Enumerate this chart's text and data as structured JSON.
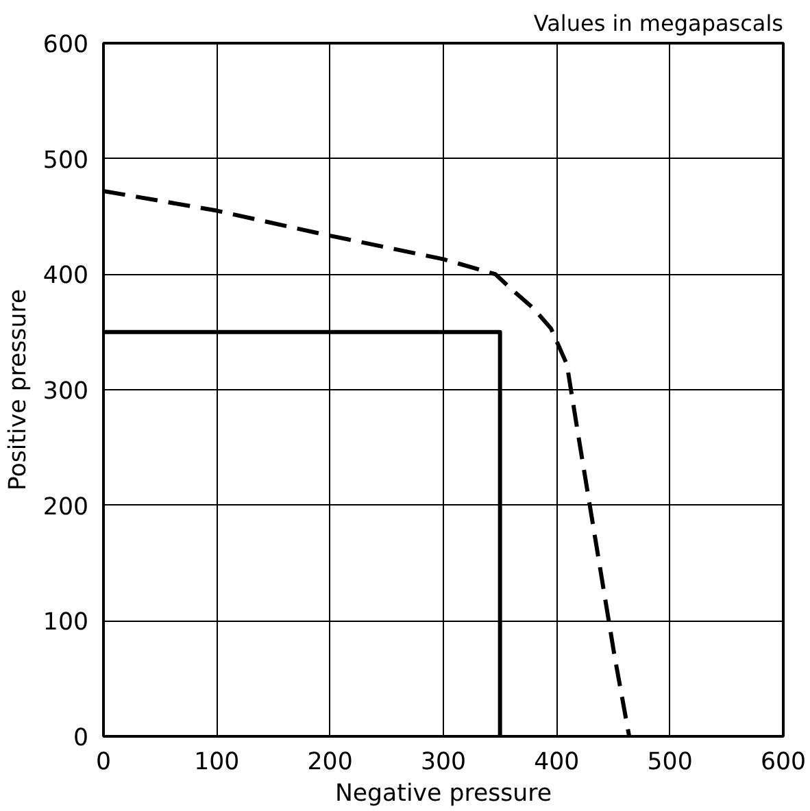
{
  "chart_data": {
    "type": "line",
    "xlabel": "Negative pressure",
    "ylabel": "Positive pressure",
    "annotations": [
      "Values in megapascals"
    ],
    "xlim": [
      0,
      600
    ],
    "ylim": [
      0,
      600
    ],
    "xticks": [
      0,
      100,
      200,
      300,
      400,
      500,
      600
    ],
    "yticks": [
      0,
      100,
      200,
      300,
      400,
      500,
      600
    ],
    "grid": true,
    "series": [
      {
        "color": "#000000",
        "line_style": "solid",
        "x": [
          0,
          350,
          350
        ],
        "values": [
          350,
          350,
          0
        ]
      },
      {
        "color": "#000000",
        "line_style": "dashed",
        "x": [
          0,
          100,
          192,
          300,
          346,
          359,
          380,
          395,
          409,
          418,
          451,
          464
        ],
        "values": [
          472,
          455,
          435,
          413,
          400,
          388,
          370,
          353,
          322,
          267,
          70,
          0
        ]
      }
    ]
  }
}
